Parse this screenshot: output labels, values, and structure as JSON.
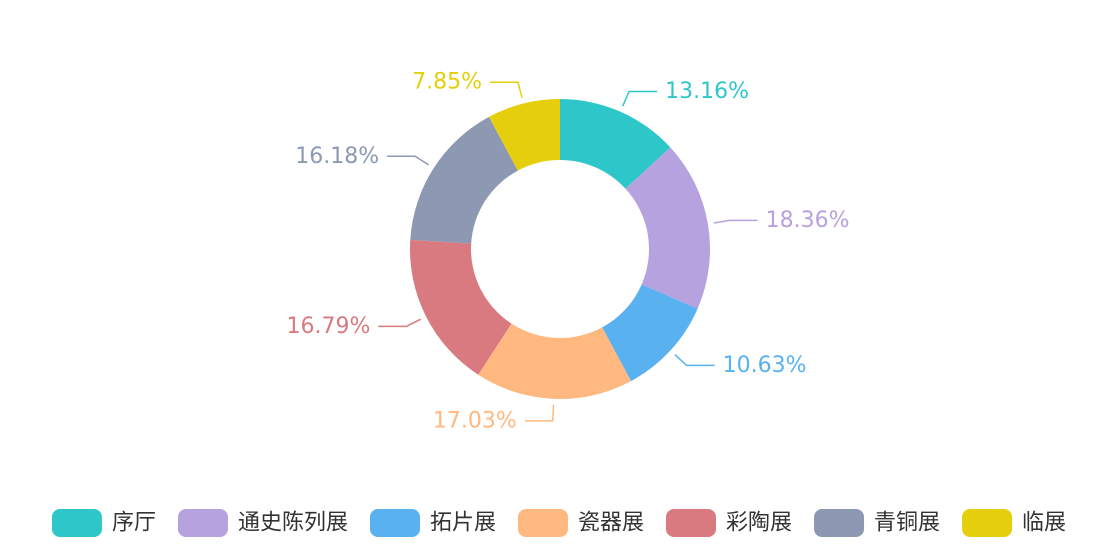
{
  "chart_data": {
    "type": "pie",
    "variant": "donut",
    "title": "",
    "slices": [
      {
        "name": "序厅",
        "value": 13.16,
        "label": "13.16%",
        "color": "#2ec7c9"
      },
      {
        "name": "通史陈列展",
        "value": 18.36,
        "label": "18.36%",
        "color": "#b6a2de"
      },
      {
        "name": "拓片展",
        "value": 10.63,
        "label": "10.63%",
        "color": "#5ab1ef"
      },
      {
        "name": "瓷器展",
        "value": 17.03,
        "label": "17.03%",
        "color": "#ffb980"
      },
      {
        "name": "彩陶展",
        "value": 16.79,
        "label": "16.79%",
        "color": "#d87a80"
      },
      {
        "name": "青铜展",
        "value": 16.18,
        "label": "16.18%",
        "color": "#8d98b3"
      },
      {
        "name": "临展",
        "value": 7.85,
        "label": "7.85%",
        "color": "#e5cf0d"
      }
    ],
    "legend_position": "bottom"
  }
}
